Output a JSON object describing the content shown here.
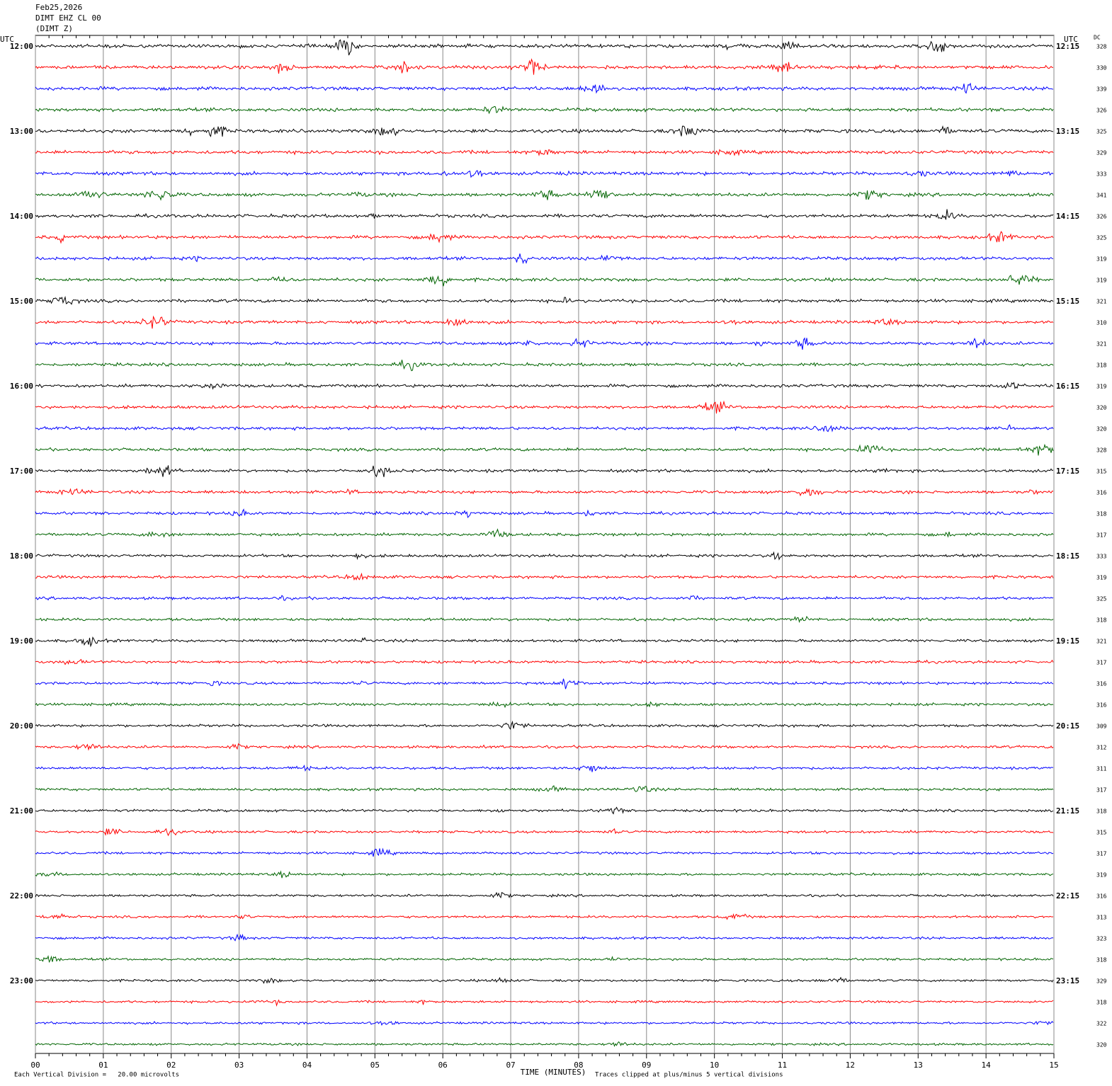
{
  "chart_data": {
    "type": "helicorder",
    "header": [
      "Feb25,2026",
      "DIMT EHZ CL 00",
      "(DIMT Z)"
    ],
    "left_axis_label": "UTC",
    "right_axis_label": "UTC",
    "dc_label": "DC",
    "rows": [
      {
        "left": "12:00",
        "right": "12:15"
      },
      {
        "left": "13:00",
        "right": "13:15"
      },
      {
        "left": "14:00",
        "right": "14:15"
      },
      {
        "left": "15:00",
        "right": "15:15"
      },
      {
        "left": "16:00",
        "right": "16:15"
      },
      {
        "left": "17:00",
        "right": "17:15"
      },
      {
        "left": "18:00",
        "right": "18:15"
      },
      {
        "left": "19:00",
        "right": "19:15"
      },
      {
        "left": "20:00",
        "right": "20:15"
      },
      {
        "left": "21:00",
        "right": "21:15"
      },
      {
        "left": "22:00",
        "right": "22:15"
      },
      {
        "left": "23:00",
        "right": "23:15"
      }
    ],
    "dc": [
      328,
      330,
      339,
      326,
      325,
      329,
      333,
      341,
      326,
      325,
      319,
      319,
      321,
      310,
      321,
      318,
      319,
      320,
      320,
      328,
      315,
      316,
      318,
      317,
      333,
      319,
      325,
      318,
      321,
      317,
      316,
      316,
      309,
      312,
      311,
      317,
      318,
      315,
      317,
      319,
      316,
      313,
      323,
      318,
      329,
      318,
      322,
      320
    ],
    "trace_colors": [
      "#000000",
      "#ff0000",
      "#0000ff",
      "#006400"
    ],
    "xlim": [
      0,
      15
    ],
    "xticks": [
      {
        "value": 0,
        "label": "00"
      },
      {
        "value": 1,
        "label": "01"
      },
      {
        "value": 2,
        "label": "02"
      },
      {
        "value": 3,
        "label": "03"
      },
      {
        "value": 4,
        "label": "04"
      },
      {
        "value": 5,
        "label": "05"
      },
      {
        "value": 6,
        "label": "06"
      },
      {
        "value": 7,
        "label": "07"
      },
      {
        "value": 8,
        "label": "08"
      },
      {
        "value": 9,
        "label": "09"
      },
      {
        "value": 10,
        "label": "10"
      },
      {
        "value": 11,
        "label": "11"
      },
      {
        "value": 12,
        "label": "12"
      },
      {
        "value": 13,
        "label": "13"
      },
      {
        "value": 14,
        "label": "14"
      },
      {
        "value": 15,
        "label": "15"
      }
    ],
    "xlabel": "TIME (MINUTES)",
    "footer_left": "Each Vertical Division =   20.00 microvolts",
    "footer_right": "Traces clipped at plus/minus 5 vertical divisions",
    "grid": true
  }
}
